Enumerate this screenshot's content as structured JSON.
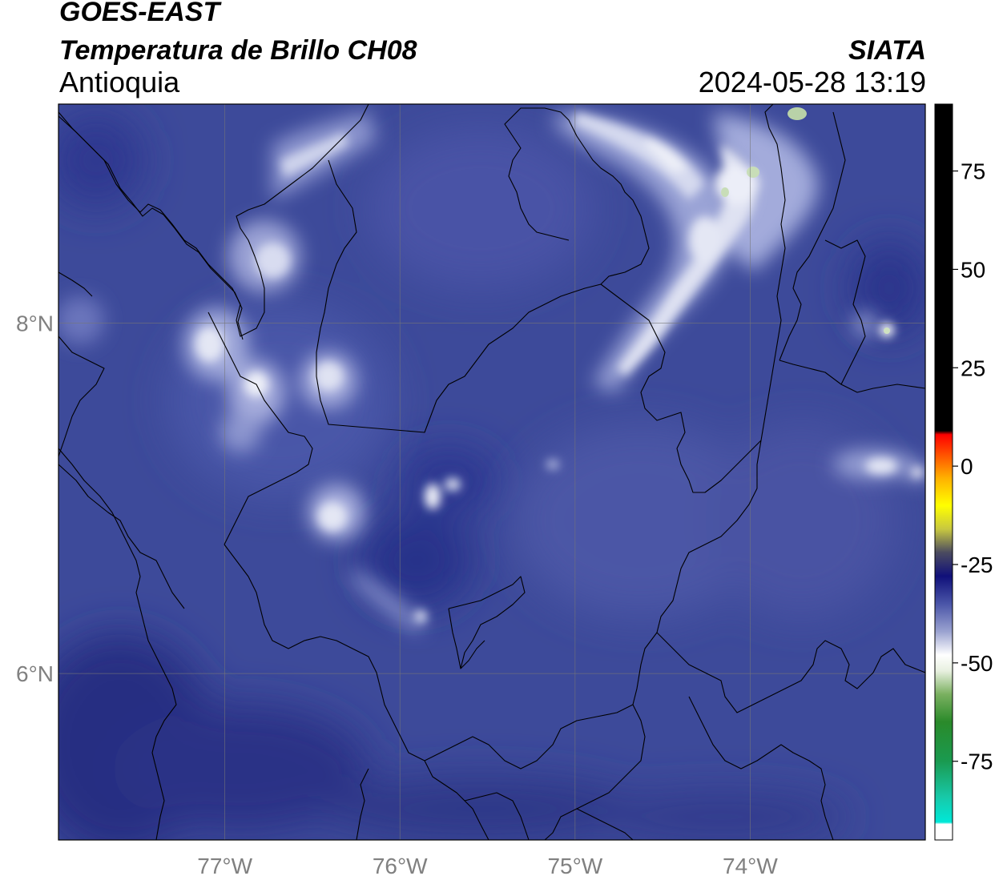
{
  "header": {
    "title_line1": "GOES-EAST",
    "title_line2": "Temperatura de Brillo CH08",
    "title_line3": "Antioquia",
    "brand": "SIATA",
    "timestamp": "2024-05-28 13:19"
  },
  "map": {
    "lon_range": [
      -77.95,
      -73.0
    ],
    "lat_range": [
      5.05,
      9.25
    ],
    "lon_ticks": [
      {
        "value": -77,
        "label": "77°W"
      },
      {
        "value": -76,
        "label": "76°W"
      },
      {
        "value": -75,
        "label": "75°W"
      },
      {
        "value": -74,
        "label": "74°W"
      }
    ],
    "lat_ticks": [
      {
        "value": 8,
        "label": "8°N"
      },
      {
        "value": 6,
        "label": "6°N"
      }
    ],
    "gridlines": true,
    "background_color": "#3d4a9a"
  },
  "colorbar": {
    "ticks": [
      {
        "value": 75,
        "label": "75"
      },
      {
        "value": 50,
        "label": "50"
      },
      {
        "value": 25,
        "label": "25"
      },
      {
        "value": 0,
        "label": "0"
      },
      {
        "value": -25,
        "label": "-25"
      },
      {
        "value": -50,
        "label": "-50"
      },
      {
        "value": -75,
        "label": "-75"
      }
    ],
    "range": [
      -95,
      92
    ],
    "stops": [
      {
        "value": -95,
        "color": "#ffffff"
      },
      {
        "value": -91,
        "color": "#ffffff"
      },
      {
        "value": -90.5,
        "color": "#00e8d8"
      },
      {
        "value": -84,
        "color": "#18c8a8"
      },
      {
        "value": -75,
        "color": "#1a9a50"
      },
      {
        "value": -65,
        "color": "#2a8a2a"
      },
      {
        "value": -58,
        "color": "#7ab060"
      },
      {
        "value": -52,
        "color": "#e8f0e0"
      },
      {
        "value": -48,
        "color": "#ffffff"
      },
      {
        "value": -42,
        "color": "#9aa2d0"
      },
      {
        "value": -35,
        "color": "#4a55a8"
      },
      {
        "value": -28,
        "color": "#10107a"
      },
      {
        "value": -22,
        "color": "#4a4a60"
      },
      {
        "value": -16,
        "color": "#c8c840"
      },
      {
        "value": -10,
        "color": "#ffff00"
      },
      {
        "value": -3,
        "color": "#ffb000"
      },
      {
        "value": 3,
        "color": "#ff5000"
      },
      {
        "value": 8,
        "color": "#ff0000"
      },
      {
        "value": 9,
        "color": "#000000"
      },
      {
        "value": 92,
        "color": "#000000"
      }
    ]
  }
}
